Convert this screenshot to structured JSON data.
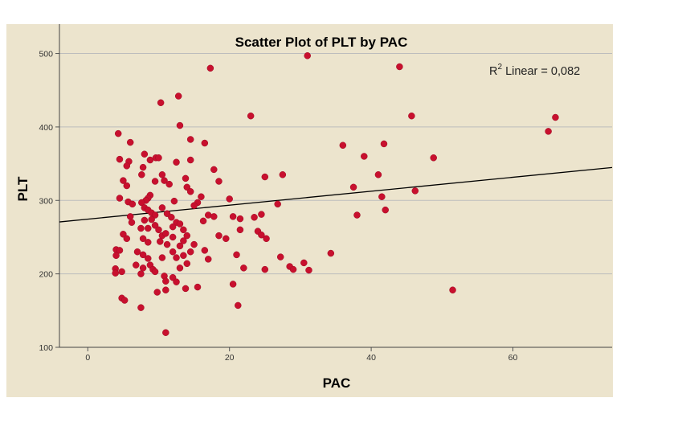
{
  "chart_data": {
    "type": "scatter",
    "title": "Scatter Plot of PLT by PAC",
    "xlabel": "PAC",
    "ylabel": "PLT",
    "xlim": [
      -4,
      74
    ],
    "ylim": [
      100,
      540
    ],
    "xticks": [
      0,
      20,
      40,
      60
    ],
    "yticks": [
      100,
      200,
      300,
      400,
      500
    ],
    "grid": "horizontal",
    "annotation": {
      "prefix": "R",
      "superscript": "2",
      "suffix": " Linear = 0,082"
    },
    "fit_line": {
      "intercept": 274.5,
      "slope": 0.95
    },
    "colors": {
      "background": "#ece4cd",
      "point": "#c8102e",
      "grid": "#bdbdbd",
      "line": "#000000"
    },
    "points": [
      [
        4.3,
        391
      ],
      [
        4.5,
        356
      ],
      [
        6.0,
        379
      ],
      [
        5.8,
        353
      ],
      [
        5.5,
        347
      ],
      [
        5.0,
        327
      ],
      [
        5.5,
        320
      ],
      [
        4.5,
        303
      ],
      [
        5.7,
        298
      ],
      [
        6.3,
        295
      ],
      [
        6.0,
        278
      ],
      [
        6.2,
        270
      ],
      [
        5.0,
        254
      ],
      [
        5.5,
        248
      ],
      [
        4.0,
        233
      ],
      [
        4.5,
        232
      ],
      [
        4.0,
        225
      ],
      [
        3.9,
        207
      ],
      [
        3.9,
        201
      ],
      [
        4.8,
        203
      ],
      [
        4.8,
        167
      ],
      [
        5.2,
        164
      ],
      [
        7.5,
        154
      ],
      [
        8.0,
        363
      ],
      [
        7.8,
        345
      ],
      [
        7.6,
        335
      ],
      [
        8.8,
        355
      ],
      [
        9.6,
        358
      ],
      [
        10.0,
        358
      ],
      [
        9.5,
        326
      ],
      [
        8.8,
        307
      ],
      [
        8.5,
        303
      ],
      [
        8.2,
        300
      ],
      [
        7.6,
        297
      ],
      [
        8.0,
        290
      ],
      [
        8.5,
        287
      ],
      [
        9.0,
        283
      ],
      [
        9.5,
        280
      ],
      [
        9.0,
        274
      ],
      [
        8.0,
        273
      ],
      [
        7.5,
        262
      ],
      [
        8.5,
        262
      ],
      [
        9.5,
        266
      ],
      [
        10.0,
        260
      ],
      [
        10.5,
        252
      ],
      [
        7.8,
        248
      ],
      [
        8.5,
        243
      ],
      [
        7.0,
        230
      ],
      [
        7.8,
        226
      ],
      [
        8.5,
        221
      ],
      [
        6.8,
        212
      ],
      [
        7.8,
        208
      ],
      [
        8.8,
        212
      ],
      [
        9.2,
        206
      ],
      [
        9.5,
        203
      ],
      [
        7.5,
        200
      ],
      [
        10.3,
        433
      ],
      [
        12.8,
        442
      ],
      [
        13.0,
        402
      ],
      [
        14.5,
        383
      ],
      [
        12.5,
        352
      ],
      [
        10.5,
        335
      ],
      [
        10.8,
        327
      ],
      [
        11.5,
        322
      ],
      [
        13.8,
        330
      ],
      [
        14.0,
        318
      ],
      [
        14.5,
        312
      ],
      [
        12.2,
        299
      ],
      [
        10.5,
        290
      ],
      [
        11.2,
        282
      ],
      [
        11.8,
        277
      ],
      [
        12.5,
        270
      ],
      [
        12.0,
        264
      ],
      [
        13.0,
        268
      ],
      [
        13.5,
        260
      ],
      [
        11.0,
        255
      ],
      [
        12.0,
        250
      ],
      [
        13.5,
        245
      ],
      [
        14.0,
        252
      ],
      [
        10.2,
        244
      ],
      [
        11.2,
        240
      ],
      [
        13.0,
        238
      ],
      [
        12.0,
        230
      ],
      [
        13.5,
        225
      ],
      [
        14.5,
        230
      ],
      [
        10.5,
        222
      ],
      [
        12.5,
        222
      ],
      [
        14.0,
        214
      ],
      [
        13.0,
        208
      ],
      [
        10.8,
        197
      ],
      [
        11.0,
        190
      ],
      [
        12.0,
        195
      ],
      [
        12.5,
        189
      ],
      [
        9.8,
        175
      ],
      [
        11.0,
        178
      ],
      [
        13.8,
        180
      ],
      [
        15.5,
        182
      ],
      [
        11.0,
        120
      ],
      [
        17.3,
        480
      ],
      [
        16.5,
        378
      ],
      [
        14.5,
        355
      ],
      [
        17.8,
        342
      ],
      [
        18.5,
        326
      ],
      [
        15.5,
        297
      ],
      [
        16.0,
        305
      ],
      [
        17.0,
        280
      ],
      [
        16.3,
        272
      ],
      [
        17.8,
        278
      ],
      [
        18.5,
        252
      ],
      [
        19.5,
        248
      ],
      [
        20.0,
        302
      ],
      [
        15.0,
        293
      ],
      [
        15.0,
        240
      ],
      [
        16.5,
        232
      ],
      [
        17.0,
        220
      ],
      [
        20.5,
        278
      ],
      [
        23.0,
        415
      ],
      [
        21.5,
        260
      ],
      [
        21.5,
        275
      ],
      [
        23.5,
        277
      ],
      [
        21.0,
        226
      ],
      [
        22.0,
        208
      ],
      [
        20.5,
        186
      ],
      [
        21.2,
        157
      ],
      [
        25.0,
        332
      ],
      [
        24.5,
        281
      ],
      [
        24.0,
        258
      ],
      [
        24.5,
        253
      ],
      [
        25.2,
        248
      ],
      [
        25.0,
        206
      ],
      [
        26.8,
        295
      ],
      [
        27.5,
        335
      ],
      [
        27.2,
        223
      ],
      [
        28.5,
        210
      ],
      [
        29.0,
        206
      ],
      [
        30.5,
        215
      ],
      [
        31.2,
        205
      ],
      [
        31.0,
        497
      ],
      [
        34.3,
        228
      ],
      [
        36.0,
        375
      ],
      [
        37.5,
        318
      ],
      [
        38.0,
        280
      ],
      [
        39.0,
        360
      ],
      [
        41.0,
        335
      ],
      [
        41.5,
        305
      ],
      [
        41.8,
        377
      ],
      [
        42.0,
        287
      ],
      [
        44.0,
        482
      ],
      [
        45.7,
        415
      ],
      [
        46.2,
        313
      ],
      [
        48.8,
        358
      ],
      [
        51.5,
        178
      ],
      [
        65.0,
        394
      ],
      [
        66.0,
        413
      ]
    ]
  }
}
